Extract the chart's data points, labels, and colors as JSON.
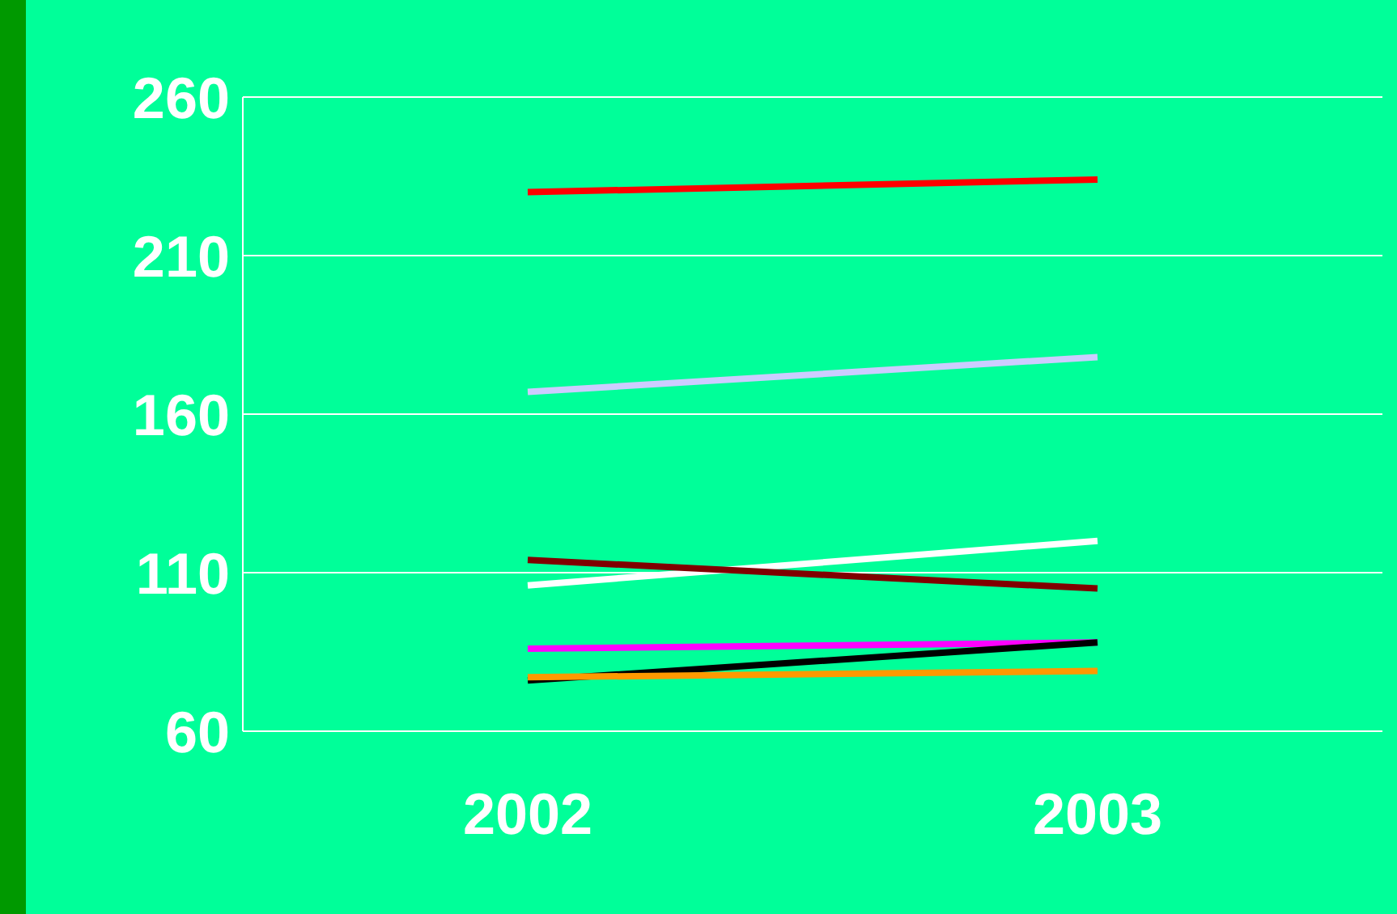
{
  "chart_data": {
    "type": "line",
    "categories": [
      "2002",
      "2003"
    ],
    "series": [
      {
        "color": "#ff0000",
        "values": [
          230,
          234
        ]
      },
      {
        "color": "#ccccff",
        "values": [
          167,
          178
        ]
      },
      {
        "color": "#ffffff",
        "values": [
          106,
          120
        ]
      },
      {
        "color": "#800000",
        "values": [
          114,
          105
        ]
      },
      {
        "color": "#ff00ff",
        "values": [
          86,
          88
        ]
      },
      {
        "color": "#000000",
        "values": [
          76,
          88
        ]
      },
      {
        "color": "#ff9900",
        "values": [
          77,
          79
        ]
      }
    ],
    "ylim": [
      60,
      260
    ],
    "yticks": [
      60,
      110,
      160,
      210,
      260
    ],
    "grid": "y",
    "marker": "none",
    "line_style": "solid"
  }
}
